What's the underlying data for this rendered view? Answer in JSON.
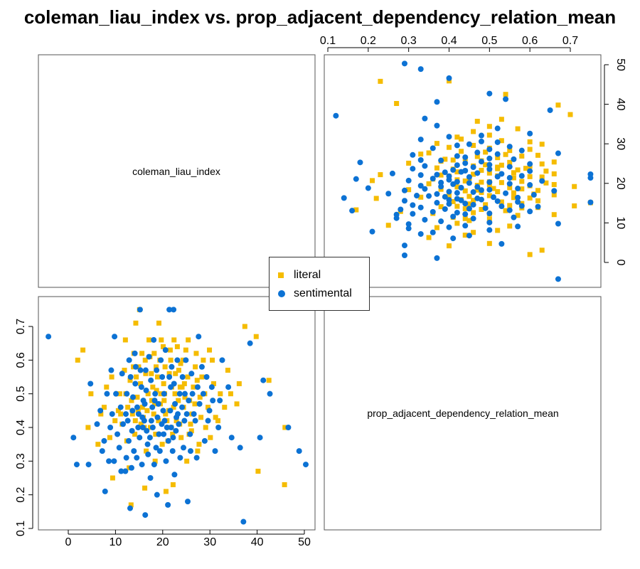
{
  "chart_data": {
    "type": "scatter",
    "title": "coleman_liau_index vs. prop_adjacent_dependency_relation_mean",
    "variables": [
      "coleman_liau_index",
      "prop_adjacent_dependency_relation_mean"
    ],
    "layout": "2x2 scatterplot matrix",
    "x_ticks_top": [
      "0.1",
      "0.2",
      "0.3",
      "0.4",
      "0.5",
      "0.6",
      "0.7"
    ],
    "y_ticks_right": [
      "0",
      "10",
      "20",
      "30",
      "40",
      "50"
    ],
    "x_ticks_bottom": [
      "0",
      "10",
      "20",
      "30",
      "40",
      "50"
    ],
    "y_ticks_left": [
      "0.1",
      "0.2",
      "0.3",
      "0.4",
      "0.5",
      "0.6",
      "0.7"
    ],
    "coleman_range": [
      -5,
      52
    ],
    "prop_range": [
      0.1,
      0.76
    ],
    "legend": {
      "placement": "center",
      "entries": [
        {
          "name": "literal",
          "color": "#F5BC00",
          "marker": "square"
        },
        {
          "name": "sentimental",
          "color": "#0C72D4",
          "marker": "circle"
        }
      ]
    },
    "series": [
      {
        "name": "literal",
        "color": "#F5BC00",
        "marker": "square",
        "points": [
          [
            12.2,
            0.5
          ],
          [
            14.8,
            0.45
          ],
          [
            15.6,
            0.62
          ],
          [
            17.4,
            0.4
          ],
          [
            18.9,
            0.55
          ],
          [
            20.3,
            0.48
          ],
          [
            21.7,
            0.6
          ],
          [
            22.9,
            0.42
          ],
          [
            24.1,
            0.52
          ],
          [
            25.6,
            0.38
          ],
          [
            13.8,
            0.58
          ],
          [
            16.5,
            0.33
          ],
          [
            19.7,
            0.66
          ],
          [
            23.4,
            0.57
          ],
          [
            26.8,
            0.47
          ],
          [
            28.3,
            0.55
          ],
          [
            11.4,
            0.41
          ],
          [
            17.9,
            0.52
          ],
          [
            21.1,
            0.36
          ],
          [
            24.9,
            0.63
          ],
          [
            14.3,
            0.71
          ],
          [
            15.1,
            0.75
          ],
          [
            2.0,
            0.6
          ],
          [
            3.1,
            0.63
          ],
          [
            4.2,
            0.4
          ],
          [
            4.8,
            0.5
          ],
          [
            6.3,
            0.35
          ],
          [
            8.1,
            0.52
          ],
          [
            9.4,
            0.25
          ],
          [
            10.6,
            0.45
          ],
          [
            12.9,
            0.28
          ],
          [
            13.3,
            0.17
          ],
          [
            16.2,
            0.22
          ],
          [
            18.4,
            0.3
          ],
          [
            20.7,
            0.21
          ],
          [
            22.2,
            0.23
          ],
          [
            25.1,
            0.3
          ],
          [
            27.4,
            0.33
          ],
          [
            29.1,
            0.4
          ],
          [
            30.5,
            0.6
          ],
          [
            31.2,
            0.43
          ],
          [
            33.8,
            0.57
          ],
          [
            34.4,
            0.5
          ],
          [
            35.7,
            0.47
          ],
          [
            36.2,
            0.53
          ],
          [
            37.4,
            0.7
          ],
          [
            39.8,
            0.67
          ],
          [
            40.2,
            0.27
          ],
          [
            42.5,
            0.54
          ],
          [
            45.9,
            0.4
          ],
          [
            45.8,
            0.23
          ],
          [
            19.2,
            0.71
          ],
          [
            20.1,
            0.64
          ],
          [
            23.8,
            0.59
          ],
          [
            18.1,
            0.44
          ],
          [
            16.9,
            0.5
          ],
          [
            22.6,
            0.5
          ],
          [
            14.1,
            0.38
          ],
          [
            13.1,
            0.54
          ],
          [
            26.2,
            0.44
          ],
          [
            27.9,
            0.49
          ],
          [
            21.4,
            0.56
          ],
          [
            19.5,
            0.47
          ],
          [
            17.3,
            0.61
          ],
          [
            24.4,
            0.46
          ],
          [
            15.9,
            0.43
          ],
          [
            12.6,
            0.46
          ],
          [
            20.9,
            0.42
          ],
          [
            22.1,
            0.38
          ],
          [
            18.6,
            0.58
          ],
          [
            23.1,
            0.64
          ],
          [
            25.3,
            0.55
          ],
          [
            16.4,
            0.56
          ],
          [
            28.9,
            0.5
          ],
          [
            11.9,
            0.57
          ],
          [
            30.1,
            0.37
          ],
          [
            32.2,
            0.5
          ],
          [
            9.9,
            0.42
          ],
          [
            8.8,
            0.37
          ],
          [
            7.6,
            0.46
          ],
          [
            27.1,
            0.62
          ],
          [
            19.9,
            0.35
          ],
          [
            14.6,
            0.49
          ],
          [
            21.9,
            0.52
          ],
          [
            17.7,
            0.48
          ],
          [
            23.6,
            0.41
          ],
          [
            26.5,
            0.52
          ],
          [
            15.3,
            0.53
          ],
          [
            18.2,
            0.62
          ],
          [
            20.5,
            0.58
          ],
          [
            22.4,
            0.66
          ],
          [
            24.7,
            0.49
          ],
          [
            13.6,
            0.44
          ],
          [
            29.6,
            0.46
          ],
          [
            31.7,
            0.42
          ],
          [
            10.9,
            0.5
          ],
          [
            12.4,
            0.36
          ],
          [
            16.1,
            0.4
          ],
          [
            19.1,
            0.42
          ],
          [
            21.3,
            0.45
          ],
          [
            25.9,
            0.41
          ],
          [
            28.1,
            0.43
          ],
          [
            14.9,
            0.58
          ],
          [
            17.1,
            0.66
          ],
          [
            23.3,
            0.48
          ],
          [
            20.2,
            0.53
          ],
          [
            18.7,
            0.51
          ],
          [
            22.7,
            0.56
          ],
          [
            24.3,
            0.6
          ],
          [
            26.9,
            0.58
          ],
          [
            15.7,
            0.46
          ],
          [
            13.9,
            0.62
          ],
          [
            11.1,
            0.44
          ],
          [
            27.7,
            0.35
          ],
          [
            30.8,
            0.53
          ],
          [
            33.1,
            0.46
          ],
          [
            16.7,
            0.45
          ],
          [
            19.4,
            0.6
          ],
          [
            21.6,
            0.63
          ],
          [
            25.4,
            0.66
          ],
          [
            9.2,
            0.55
          ],
          [
            6.9,
            0.44
          ],
          [
            12.1,
            0.66
          ],
          [
            14.4,
            0.55
          ],
          [
            18.5,
            0.38
          ],
          [
            20.6,
            0.44
          ],
          [
            23.9,
            0.37
          ],
          [
            26.1,
            0.39
          ],
          [
            28.6,
            0.6
          ],
          [
            29.9,
            0.63
          ],
          [
            17.6,
            0.56
          ],
          [
            22.3,
            0.46
          ],
          [
            24.6,
            0.53
          ],
          [
            19.6,
            0.5
          ],
          [
            15.4,
            0.41
          ],
          [
            13.4,
            0.48
          ],
          [
            21.8,
            0.4
          ],
          [
            18.3,
            0.47
          ],
          [
            20.4,
            0.5
          ],
          [
            23.7,
            0.52
          ],
          [
            16.3,
            0.6
          ],
          [
            25.7,
            0.48
          ],
          [
            27.3,
            0.54
          ],
          [
            14.2,
            0.42
          ]
        ]
      },
      {
        "name": "sentimental",
        "color": "#0C72D4",
        "marker": "circle",
        "points": [
          [
            -4.2,
            0.67
          ],
          [
            1.1,
            0.37
          ],
          [
            1.8,
            0.29
          ],
          [
            4.3,
            0.29
          ],
          [
            4.7,
            0.53
          ],
          [
            6.1,
            0.41
          ],
          [
            7.2,
            0.33
          ],
          [
            7.8,
            0.21
          ],
          [
            8.6,
            0.3
          ],
          [
            9.8,
            0.67
          ],
          [
            11.2,
            0.27
          ],
          [
            12.1,
            0.27
          ],
          [
            13.1,
            0.16
          ],
          [
            14.3,
            0.58
          ],
          [
            15.2,
            0.75
          ],
          [
            16.3,
            0.14
          ],
          [
            17.4,
            0.25
          ],
          [
            18.8,
            0.2
          ],
          [
            21.1,
            0.17
          ],
          [
            21.4,
            0.75
          ],
          [
            22.3,
            0.75
          ],
          [
            22.5,
            0.26
          ],
          [
            25.3,
            0.18
          ],
          [
            27.6,
            0.67
          ],
          [
            29.6,
            0.42
          ],
          [
            31.8,
            0.4
          ],
          [
            33.9,
            0.52
          ],
          [
            34.6,
            0.37
          ],
          [
            37.1,
            0.12
          ],
          [
            38.5,
            0.65
          ],
          [
            41.3,
            0.54
          ],
          [
            42.7,
            0.5
          ],
          [
            46.6,
            0.4
          ],
          [
            48.9,
            0.33
          ],
          [
            50.3,
            0.29
          ],
          [
            40.6,
            0.37
          ],
          [
            36.4,
            0.34
          ],
          [
            32.6,
            0.6
          ],
          [
            30.4,
            0.52
          ],
          [
            28.3,
            0.58
          ],
          [
            12.4,
            0.5
          ],
          [
            13.6,
            0.45
          ],
          [
            14.8,
            0.4
          ],
          [
            15.9,
            0.48
          ],
          [
            16.8,
            0.35
          ],
          [
            17.6,
            0.42
          ],
          [
            18.4,
            0.5
          ],
          [
            19.2,
            0.38
          ],
          [
            20.1,
            0.45
          ],
          [
            20.9,
            0.4
          ],
          [
            21.7,
            0.52
          ],
          [
            22.6,
            0.47
          ],
          [
            23.4,
            0.41
          ],
          [
            24.2,
            0.55
          ],
          [
            25.1,
            0.44
          ],
          [
            26.3,
            0.5
          ],
          [
            11.1,
            0.46
          ],
          [
            10.4,
            0.38
          ],
          [
            9.3,
            0.44
          ],
          [
            8.2,
            0.5
          ],
          [
            13.2,
            0.55
          ],
          [
            14.1,
            0.62
          ],
          [
            15.5,
            0.52
          ],
          [
            16.4,
            0.57
          ],
          [
            17.1,
            0.61
          ],
          [
            18.1,
            0.66
          ],
          [
            19.6,
            0.6
          ],
          [
            20.6,
            0.63
          ],
          [
            21.9,
            0.58
          ],
          [
            23.1,
            0.6
          ],
          [
            24.7,
            0.5
          ],
          [
            25.8,
            0.38
          ],
          [
            26.9,
            0.42
          ],
          [
            27.8,
            0.47
          ],
          [
            28.9,
            0.36
          ],
          [
            29.9,
            0.45
          ],
          [
            31.1,
            0.33
          ],
          [
            32.1,
            0.48
          ],
          [
            12.8,
            0.36
          ],
          [
            13.9,
            0.33
          ],
          [
            15.1,
            0.37
          ],
          [
            16.1,
            0.42
          ],
          [
            17.3,
            0.37
          ],
          [
            18.6,
            0.34
          ],
          [
            19.8,
            0.41
          ],
          [
            21.2,
            0.36
          ],
          [
            22.8,
            0.39
          ],
          [
            24.4,
            0.34
          ],
          [
            11.6,
            0.41
          ],
          [
            12.6,
            0.42
          ],
          [
            13.7,
            0.49
          ],
          [
            14.6,
            0.46
          ],
          [
            15.7,
            0.43
          ],
          [
            16.6,
            0.39
          ],
          [
            17.8,
            0.46
          ],
          [
            18.9,
            0.43
          ],
          [
            20.3,
            0.5
          ],
          [
            21.6,
            0.45
          ],
          [
            22.9,
            0.43
          ],
          [
            24.1,
            0.46
          ],
          [
            25.5,
            0.48
          ],
          [
            26.6,
            0.44
          ],
          [
            10.8,
            0.34
          ],
          [
            9.7,
            0.3
          ],
          [
            8.9,
            0.4
          ],
          [
            7.6,
            0.36
          ],
          [
            6.8,
            0.45
          ],
          [
            12.3,
            0.31
          ],
          [
            13.4,
            0.28
          ],
          [
            14.5,
            0.31
          ],
          [
            15.6,
            0.29
          ],
          [
            16.9,
            0.32
          ],
          [
            18.2,
            0.29
          ],
          [
            19.4,
            0.33
          ],
          [
            20.7,
            0.3
          ],
          [
            22.1,
            0.33
          ],
          [
            23.7,
            0.31
          ],
          [
            25.9,
            0.33
          ],
          [
            27.2,
            0.31
          ],
          [
            11.4,
            0.56
          ],
          [
            12.9,
            0.6
          ],
          [
            14.2,
            0.53
          ],
          [
            15.3,
            0.57
          ],
          [
            16.5,
            0.51
          ],
          [
            17.5,
            0.54
          ],
          [
            18.7,
            0.57
          ],
          [
            19.9,
            0.55
          ],
          [
            21.4,
            0.55
          ],
          [
            22.4,
            0.53
          ],
          [
            23.6,
            0.5
          ],
          [
            24.9,
            0.6
          ],
          [
            26.1,
            0.56
          ],
          [
            27.4,
            0.52
          ],
          [
            28.6,
            0.5
          ],
          [
            29.3,
            0.55
          ],
          [
            30.6,
            0.48
          ],
          [
            10.1,
            0.5
          ],
          [
            9.1,
            0.57
          ],
          [
            13.5,
            0.39
          ],
          [
            15.8,
            0.4
          ],
          [
            17.9,
            0.4
          ],
          [
            19.1,
            0.47
          ],
          [
            20.4,
            0.42
          ],
          [
            21.8,
            0.4
          ],
          [
            23.2,
            0.44
          ],
          [
            24.6,
            0.42
          ],
          [
            14.9,
            0.44
          ],
          [
            16.2,
            0.47
          ],
          [
            18.3,
            0.48
          ],
          [
            20.2,
            0.38
          ],
          [
            22.2,
            0.37
          ],
          [
            12.2,
            0.44
          ]
        ]
      }
    ]
  }
}
